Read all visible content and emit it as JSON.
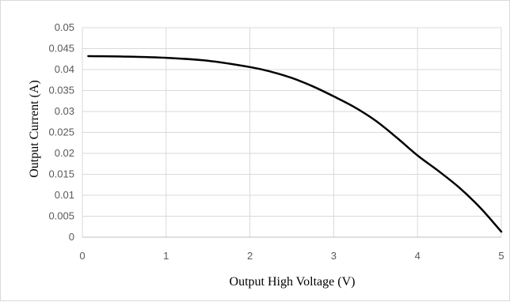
{
  "chart_data": {
    "type": "line",
    "title": "",
    "xlabel": "Output High Voltage (V)",
    "ylabel": "Output Current (A)",
    "xlim": [
      0,
      5
    ],
    "ylim": [
      0,
      0.05
    ],
    "x_ticks": [
      "0",
      "1",
      "2",
      "3",
      "4",
      "5"
    ],
    "y_ticks": [
      "0",
      "0.005",
      "0.01",
      "0.015",
      "0.02",
      "0.025",
      "0.03",
      "0.035",
      "0.04",
      "0.045",
      "0.05"
    ],
    "grid": true,
    "legend": "none",
    "series": [
      {
        "color": "#000000",
        "x": [
          0.07,
          0.5,
          1.0,
          1.5,
          2.0,
          2.25,
          2.5,
          2.75,
          3.0,
          3.25,
          3.5,
          3.75,
          4.0,
          4.25,
          4.5,
          4.75,
          5.0
        ],
        "y": [
          0.0432,
          0.0431,
          0.0428,
          0.0421,
          0.0406,
          0.0395,
          0.038,
          0.036,
          0.0336,
          0.031,
          0.0278,
          0.0238,
          0.0195,
          0.0158,
          0.0118,
          0.007,
          0.0013
        ]
      }
    ]
  }
}
